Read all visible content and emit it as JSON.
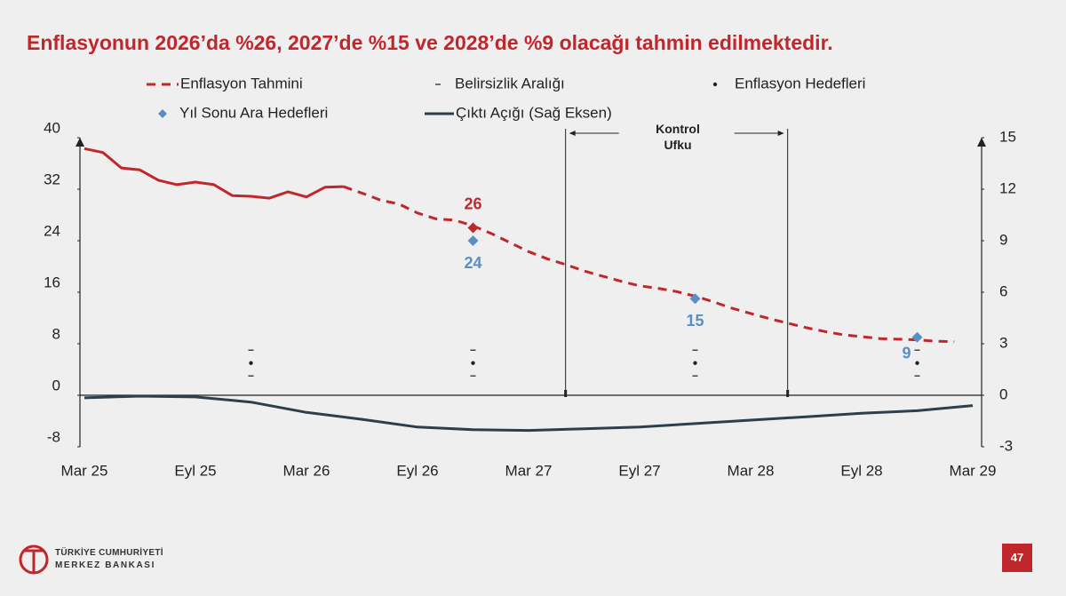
{
  "chart_data": {
    "type": "line",
    "title": "Enflasyonun 2026’da %26, 2027’de %15 ve 2028’de %9 olacağı tahmin edilmektedir.",
    "xlim": [
      "2025-03",
      "2029-03"
    ],
    "xticks": [
      {
        "value": "2025-03",
        "label": "Mar 25"
      },
      {
        "value": "2025-09",
        "label": "Eyl 25"
      },
      {
        "value": "2026-03",
        "label": "Mar 26"
      },
      {
        "value": "2026-09",
        "label": "Eyl 26"
      },
      {
        "value": "2027-03",
        "label": "Mar 27"
      },
      {
        "value": "2027-09",
        "label": "Eyl 27"
      },
      {
        "value": "2028-03",
        "label": "Mar 28"
      },
      {
        "value": "2028-09",
        "label": "Eyl 28"
      },
      {
        "value": "2029-03",
        "label": "Mar 29"
      }
    ],
    "ylim": [
      -8,
      40
    ],
    "yticks": [
      -8,
      0,
      8,
      16,
      24,
      32,
      40
    ],
    "y2lim": [
      -3,
      15
    ],
    "y2ticks": [
      -3,
      0,
      3,
      6,
      9,
      12,
      15
    ],
    "series": [
      {
        "type": "line",
        "style": "solid",
        "color": "#c0272d",
        "x": [
          "2025-03",
          "2025-04",
          "2025-05",
          "2025-06",
          "2025-07",
          "2025-08",
          "2025-09",
          "2025-10",
          "2025-11",
          "2025-12",
          "2026-01",
          "2026-02",
          "2026-03",
          "2026-04",
          "2026-05"
        ],
        "values": [
          38.3,
          37.7,
          35.3,
          35.0,
          33.4,
          32.7,
          33.1,
          32.7,
          31.0,
          30.9,
          30.6,
          31.6,
          30.8,
          32.3,
          32.4
        ]
      },
      {
        "name": "Enflasyon Tahmini",
        "type": "line",
        "style": "dashed",
        "color": "#c0272d",
        "x": [
          "2026-05",
          "2026-06",
          "2026-07",
          "2026-08",
          "2026-09",
          "2026-10",
          "2026-11",
          "2026-12",
          "2027-01",
          "2027-02",
          "2027-03",
          "2027-04",
          "2027-05",
          "2027-06",
          "2027-07",
          "2027-08",
          "2027-09",
          "2027-10",
          "2027-11",
          "2027-12",
          "2028-01",
          "2028-02",
          "2028-03",
          "2028-04",
          "2028-05",
          "2028-06",
          "2028-07",
          "2028-08",
          "2028-09",
          "2028-10",
          "2028-11",
          "2028-12",
          "2029-01",
          "2029-02"
        ],
        "values": [
          32.4,
          31.4,
          30.3,
          29.7,
          28.3,
          27.4,
          27.2,
          26.3,
          25.1,
          23.7,
          22.3,
          21.2,
          20.3,
          19.3,
          18.5,
          17.7,
          17.0,
          16.6,
          16.1,
          15.4,
          14.5,
          13.5,
          12.7,
          11.9,
          11.2,
          10.5,
          9.9,
          9.4,
          9.1,
          8.8,
          8.7,
          8.6,
          8.4,
          8.3
        ]
      },
      {
        "name": "Belirsizlik Aralığı",
        "type": "range",
        "color": "#444444",
        "x": [
          "2025-12",
          "2026-12",
          "2027-12",
          "2028-12"
        ],
        "low": [
          3,
          3,
          3,
          3
        ],
        "high": [
          7,
          7,
          7,
          7
        ]
      },
      {
        "name": "Enflasyon Hedefleri",
        "type": "scatter",
        "marker": "dot",
        "color": "#222222",
        "x": [
          "2025-12",
          "2026-12",
          "2027-12",
          "2028-12"
        ],
        "values": [
          5,
          5,
          5,
          5
        ]
      },
      {
        "name": "Yıl Sonu Ara Hedefleri",
        "type": "scatter",
        "marker": "diamond",
        "color": "#5b8ec4",
        "labeled": true,
        "x": [
          "2026-12",
          "2027-12",
          "2028-12"
        ],
        "values": [
          24,
          15,
          9
        ]
      },
      {
        "type": "scatter",
        "marker": "diamond",
        "color": "#c0272d",
        "labeled": true,
        "label_side": "above",
        "x": [
          "2026-12"
        ],
        "values": [
          26
        ]
      },
      {
        "name": "Çıktı Açığı (Sağ Eksen)",
        "type": "line",
        "style": "solid",
        "color": "#2e3f4a",
        "axis": "y2",
        "x": [
          "2025-03",
          "2025-06",
          "2025-09",
          "2025-12",
          "2026-03",
          "2026-06",
          "2026-09",
          "2026-12",
          "2027-03",
          "2027-06",
          "2027-09",
          "2027-12",
          "2028-03",
          "2028-06",
          "2028-09",
          "2028-12",
          "2029-03"
        ],
        "values": [
          -0.15,
          -0.05,
          -0.1,
          -0.4,
          -1.0,
          -1.4,
          -1.85,
          -2.0,
          -2.05,
          -1.95,
          -1.85,
          -1.65,
          -1.45,
          -1.25,
          -1.05,
          -0.9,
          -0.6
        ]
      }
    ],
    "control_horizon": {
      "label": "Kontrol Ufku",
      "x": [
        "2027-05",
        "2028-05"
      ]
    }
  },
  "footer": {
    "bank_line1": "TÜRKİYE CUMHURİYETİ",
    "bank_line2": "MERKEZ BANKASI",
    "page_number": 47
  }
}
